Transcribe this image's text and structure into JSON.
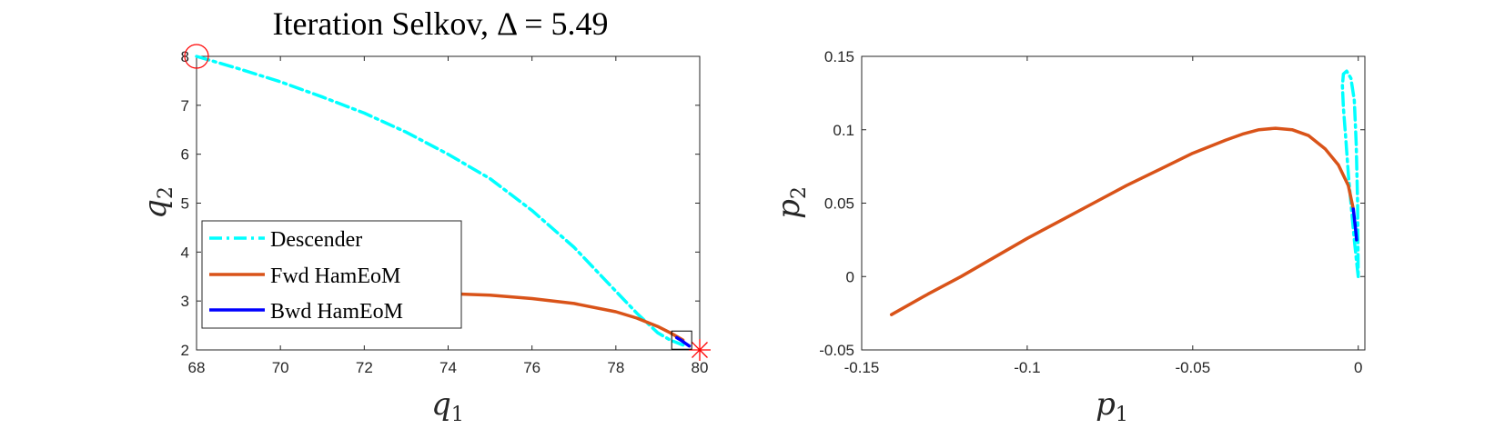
{
  "chart_data": [
    {
      "type": "line",
      "title": "Iteration Selkov, Δ = 5.49",
      "xlabel": "q",
      "xlabel_sub": "1",
      "ylabel": "q",
      "ylabel_sub": "2",
      "xlim": [
        68,
        80
      ],
      "ylim": [
        2,
        8
      ],
      "xticks": [
        68,
        70,
        72,
        74,
        76,
        78,
        80
      ],
      "yticks": [
        2,
        3,
        4,
        5,
        6,
        7,
        8
      ],
      "grid": false,
      "legend": "bottom-left",
      "series": [
        {
          "name": "Descender",
          "color": "#00FFFF",
          "style": "dashdot",
          "x": [
            68.0,
            69.0,
            70.0,
            71.0,
            72.0,
            73.0,
            74.0,
            75.0,
            76.0,
            77.0,
            78.0,
            78.5,
            79.0,
            79.3,
            79.6
          ],
          "y": [
            8.0,
            7.75,
            7.48,
            7.17,
            6.84,
            6.45,
            6.0,
            5.5,
            4.85,
            4.1,
            3.2,
            2.75,
            2.35,
            2.2,
            2.1
          ]
        },
        {
          "name": "Fwd HamEoM",
          "color": "#D95319",
          "style": "solid",
          "x": [
            74.0,
            75.0,
            76.0,
            77.0,
            78.0,
            78.5,
            79.0,
            79.3,
            79.6
          ],
          "y": [
            3.15,
            3.12,
            3.05,
            2.95,
            2.78,
            2.65,
            2.48,
            2.35,
            2.2
          ]
        },
        {
          "name": "Bwd HamEoM",
          "color": "#0000FF",
          "style": "solid",
          "x": [
            79.45,
            79.55,
            79.65,
            79.75
          ],
          "y": [
            2.25,
            2.2,
            2.14,
            2.08
          ]
        }
      ],
      "markers": [
        {
          "kind": "circle",
          "color": "#FF0000",
          "x": 68.0,
          "y": 8.0
        },
        {
          "kind": "star",
          "color": "#FF0000",
          "x": 80.0,
          "y": 2.0
        },
        {
          "kind": "square",
          "color": "#000000",
          "x": 79.57,
          "y": 2.2
        }
      ]
    },
    {
      "type": "line",
      "title": "",
      "xlabel": "p",
      "xlabel_sub": "1",
      "ylabel": "p",
      "ylabel_sub": "2",
      "xlim": [
        -0.15,
        0.002
      ],
      "ylim": [
        -0.05,
        0.15
      ],
      "xticks": [
        -0.15,
        -0.1,
        -0.05,
        0
      ],
      "xticklabels": [
        "-0.15",
        "-0.1",
        "-0.05",
        "0"
      ],
      "yticks": [
        -0.05,
        0,
        0.05,
        0.1,
        0.15
      ],
      "yticklabels": [
        "-0.05",
        "0",
        "0.05",
        "0.1",
        "0.15"
      ],
      "grid": false,
      "legend": "none",
      "series": [
        {
          "name": "Descender",
          "color": "#00FFFF",
          "style": "dashdot",
          "x": [
            0.0,
            -0.0005,
            -0.0012,
            -0.002,
            -0.003,
            -0.0038,
            -0.0045,
            -0.0048,
            -0.0045,
            -0.0035,
            -0.0022,
            -0.0012,
            -0.0006,
            -0.0002,
            0.0
          ],
          "y": [
            0.0,
            0.01,
            0.025,
            0.045,
            0.07,
            0.095,
            0.115,
            0.13,
            0.138,
            0.14,
            0.135,
            0.12,
            0.09,
            0.05,
            0.0
          ]
        },
        {
          "name": "Fwd HamEoM",
          "color": "#D95319",
          "style": "solid",
          "x": [
            -0.141,
            -0.13,
            -0.12,
            -0.11,
            -0.1,
            -0.09,
            -0.08,
            -0.07,
            -0.06,
            -0.05,
            -0.04,
            -0.035,
            -0.03,
            -0.025,
            -0.02,
            -0.015,
            -0.01,
            -0.006,
            -0.003,
            -0.0015
          ],
          "y": [
            -0.026,
            -0.012,
            0.0,
            0.013,
            0.026,
            0.038,
            0.05,
            0.062,
            0.073,
            0.084,
            0.093,
            0.097,
            0.1,
            0.101,
            0.1,
            0.096,
            0.087,
            0.076,
            0.062,
            0.046
          ]
        },
        {
          "name": "Bwd HamEoM",
          "color": "#0000FF",
          "style": "solid",
          "x": [
            -0.0015,
            -0.0012,
            -0.0008,
            -0.0005
          ],
          "y": [
            0.046,
            0.04,
            0.032,
            0.025
          ]
        }
      ],
      "markers": []
    }
  ]
}
